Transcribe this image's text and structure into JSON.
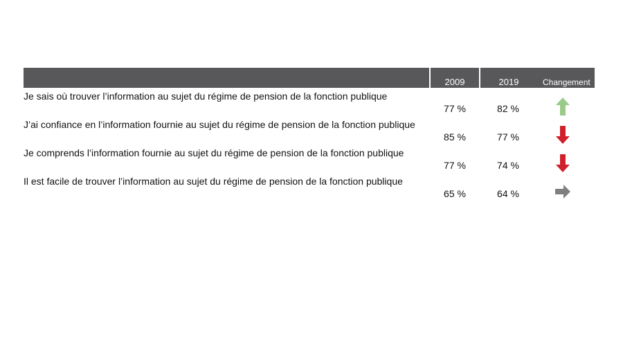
{
  "chart_data": {
    "type": "table",
    "columns": [
      "",
      "2009",
      "2019",
      "Changement"
    ],
    "rows": [
      {
        "label": "Je sais où trouver l’information au sujet du régime de pension de la fonction publique",
        "v2009": "77 %",
        "v2019": "82 %",
        "change": "up",
        "change_color": "#9bc98a"
      },
      {
        "label": "J’ai confiance en l’information fournie au sujet du régime de pension de la fonction publique",
        "v2009": "85 %",
        "v2019": "77 %",
        "change": "down",
        "change_color": "#d0202a"
      },
      {
        "label": "Je comprends l’information fournie au sujet du régime de pension de la fonction publique",
        "v2009": "77 %",
        "v2019": "74 %",
        "change": "down",
        "change_color": "#d0202a"
      },
      {
        "label": "Il est facile de trouver l’information au sujet du régime de pension de la fonction publique",
        "v2009": "65 %",
        "v2019": "64 %",
        "change": "flat",
        "change_color": "#7f7f7f"
      }
    ]
  }
}
